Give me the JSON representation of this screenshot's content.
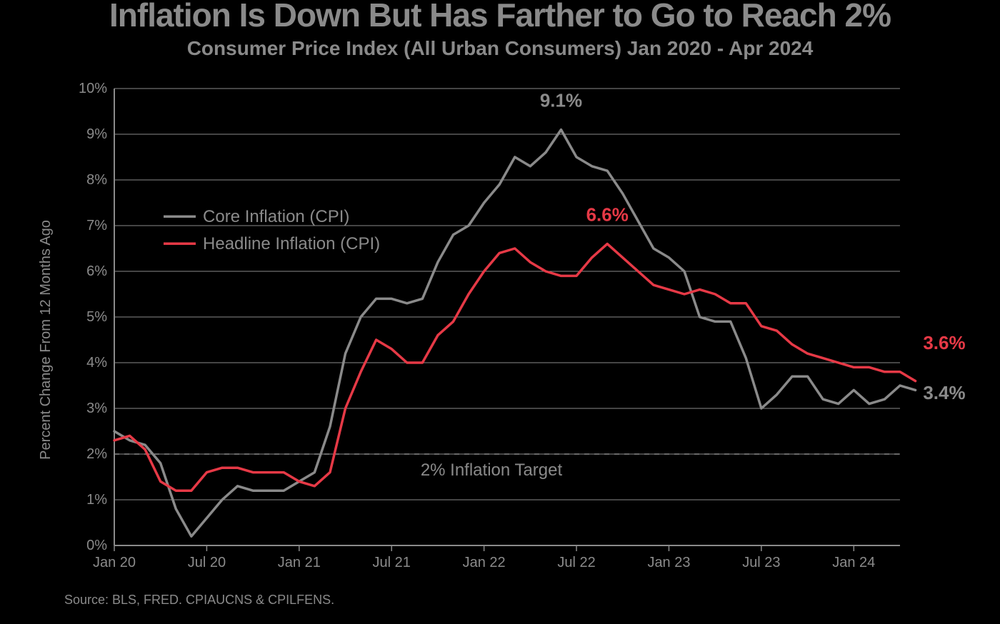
{
  "title": "Inflation Is Down But Has Farther to Go to Reach 2%",
  "subtitle": "Consumer Price Index (All Urban Consumers) Jan 2020 - Apr 2024",
  "source": "Source: BLS, FRED. CPIAUCNS & CPILFENS.",
  "ylabel": "Percent Change From 12 Months Ago",
  "chart": {
    "type": "line",
    "background": "#000000",
    "text_color": "#8a8a8a",
    "title_fontsize": 46,
    "subtitle_fontsize": 28,
    "axis_fontsize": 20,
    "ylabel_fontsize": 20,
    "annotation_fontsize": 26,
    "legend_fontsize": 24,
    "line_width": 3.5,
    "grid_line": {
      "color": "#8a8a8a",
      "width": 1
    },
    "target_line": {
      "value": 2,
      "label": "2% Inflation Target",
      "color": "#8a8a8a",
      "dash": "7,7",
      "width": 1.5,
      "label_fontsize": 24
    },
    "xlim": [
      0,
      51
    ],
    "ylim": [
      0,
      10
    ],
    "ytick_step": 1,
    "xticks": [
      {
        "i": 0,
        "label": "Jan 20"
      },
      {
        "i": 6,
        "label": "Jul 20"
      },
      {
        "i": 12,
        "label": "Jan 21"
      },
      {
        "i": 18,
        "label": "Jul 21"
      },
      {
        "i": 24,
        "label": "Jan 22"
      },
      {
        "i": 30,
        "label": "Jul 22"
      },
      {
        "i": 36,
        "label": "Jan 23"
      },
      {
        "i": 42,
        "label": "Jul 23"
      },
      {
        "i": 48,
        "label": "Jan 24"
      }
    ],
    "series": [
      {
        "name": "Core Inflation (CPI)",
        "color": "#8a8a8a",
        "values": [
          2.5,
          2.3,
          2.2,
          1.8,
          0.8,
          0.2,
          0.6,
          1.0,
          1.3,
          1.2,
          1.2,
          1.2,
          1.4,
          1.6,
          2.6,
          4.2,
          5.0,
          5.4,
          5.4,
          5.3,
          5.4,
          6.2,
          6.8,
          7.0,
          7.5,
          7.9,
          8.5,
          8.3,
          8.6,
          9.1,
          8.5,
          8.3,
          8.2,
          7.7,
          7.1,
          6.5,
          6.3,
          6.0,
          5.0,
          4.9,
          4.9,
          4.1,
          3.0,
          3.3,
          3.7,
          3.7,
          3.2,
          3.1,
          3.4,
          3.1,
          3.2,
          3.5,
          3.4
        ]
      },
      {
        "name": "Headline Inflation (CPI)",
        "color": "#e63946",
        "values": [
          2.3,
          2.4,
          2.1,
          1.4,
          1.2,
          1.2,
          1.6,
          1.7,
          1.7,
          1.6,
          1.6,
          1.6,
          1.4,
          1.3,
          1.6,
          3.0,
          3.8,
          4.5,
          4.3,
          4.0,
          4.0,
          4.6,
          4.9,
          5.5,
          6.0,
          6.4,
          6.5,
          6.2,
          6.0,
          5.9,
          5.9,
          6.3,
          6.6,
          6.3,
          6.0,
          5.7,
          5.6,
          5.5,
          5.6,
          5.5,
          5.3,
          5.3,
          4.8,
          4.7,
          4.4,
          4.2,
          4.1,
          4.0,
          3.9,
          3.9,
          3.8,
          3.8,
          3.6
        ]
      }
    ],
    "annotations": [
      {
        "text": "9.1%",
        "xi": 29,
        "y": 9.6,
        "color": "#8a8a8a",
        "anchor": "middle"
      },
      {
        "text": "6.6%",
        "xi": 32,
        "y": 7.1,
        "color": "#e63946",
        "anchor": "middle"
      },
      {
        "text": "3.6%",
        "xi": 52.5,
        "y": 4.3,
        "color": "#e63946",
        "anchor": "start"
      },
      {
        "text": "3.4%",
        "xi": 52.5,
        "y": 3.2,
        "color": "#8a8a8a",
        "anchor": "start"
      }
    ],
    "legend": {
      "x_i": 3.2,
      "y_top": 7.2
    }
  }
}
